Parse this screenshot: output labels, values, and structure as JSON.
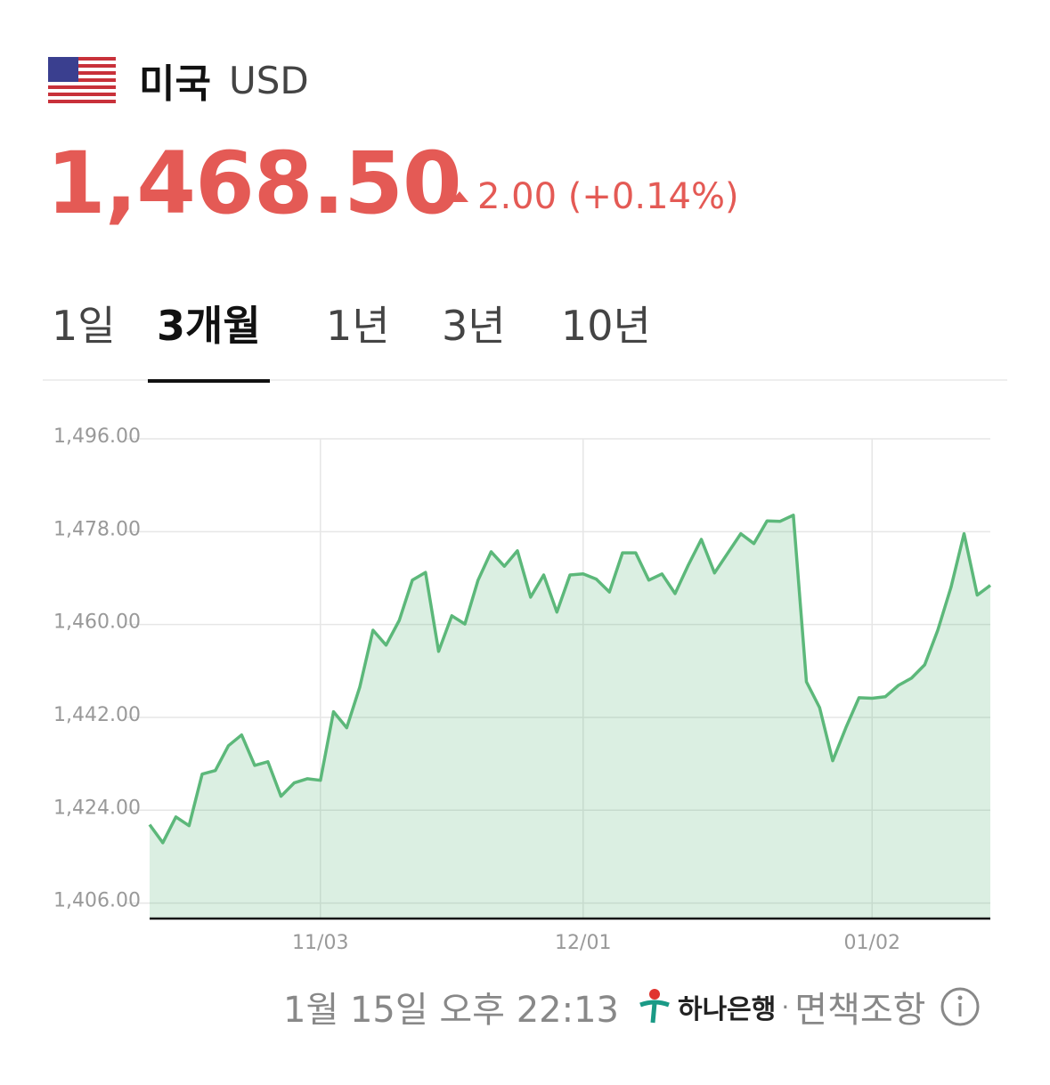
{
  "header": {
    "country": "미국",
    "currency": "USD",
    "price": "1,468.50",
    "change": "2.00 (+0.14%)"
  },
  "tabs": {
    "items": [
      "1일",
      "3개월",
      "1년",
      "3년",
      "10년"
    ],
    "selected": 1
  },
  "chart_data": {
    "type": "line",
    "categories": [
      null,
      null,
      null,
      null,
      null,
      null,
      null,
      null,
      null,
      null,
      null,
      null,
      null,
      "11/03",
      null,
      null,
      null,
      null,
      null,
      null,
      null,
      null,
      null,
      null,
      null,
      null,
      null,
      null,
      null,
      null,
      null,
      null,
      null,
      "12/01",
      null,
      null,
      null,
      null,
      null,
      null,
      null,
      null,
      null,
      null,
      null,
      null,
      null,
      null,
      null,
      null,
      null,
      null,
      null,
      null,
      null,
      "01/02",
      null,
      null,
      null,
      null,
      null,
      null,
      null,
      null,
      null
    ],
    "series": [
      {
        "name": "USD",
        "color": "#5cb87a",
        "values": [
          1421.2,
          1417.7,
          1422.7,
          1421.0,
          1431.0,
          1431.7,
          1436.5,
          1438.6,
          1432.7,
          1433.4,
          1426.7,
          1429.3,
          1430.1,
          1429.8,
          1443.1,
          1440.0,
          1447.9,
          1458.9,
          1456.0,
          1460.8,
          1468.6,
          1470.1,
          1454.8,
          1461.7,
          1460.1,
          1468.6,
          1474.1,
          1471.3,
          1474.3,
          1465.3,
          1469.6,
          1462.4,
          1469.6,
          1469.8,
          1468.8,
          1466.3,
          1473.9,
          1473.9,
          1468.6,
          1469.8,
          1466.0,
          1471.5,
          1476.5,
          1470.0,
          1473.8,
          1477.6,
          1475.7,
          1480.1,
          1480.0,
          1481.2,
          1448.9,
          1443.9,
          1433.6,
          1440.0,
          1445.8,
          1445.7,
          1446.0,
          1448.2,
          1449.6,
          1452.2,
          1458.9,
          1467.2,
          1477.6,
          1465.7,
          1467.6
        ]
      }
    ],
    "ylim": [
      1403,
      1496
    ],
    "yticks": [
      {
        "value": 1406,
        "label": "1,406.00"
      },
      {
        "value": 1424,
        "label": "1,424.00"
      },
      {
        "value": 1442,
        "label": "1,442.00"
      },
      {
        "value": 1460,
        "label": "1,460.00"
      },
      {
        "value": 1478,
        "label": "1,478.00"
      },
      {
        "value": 1496,
        "label": "1,496.00"
      }
    ],
    "grid": true
  },
  "footer": {
    "timestamp": "1월 15일 오후 22:13",
    "bank": "하나은행",
    "separator": "·",
    "disclaimer": "면책조항"
  }
}
